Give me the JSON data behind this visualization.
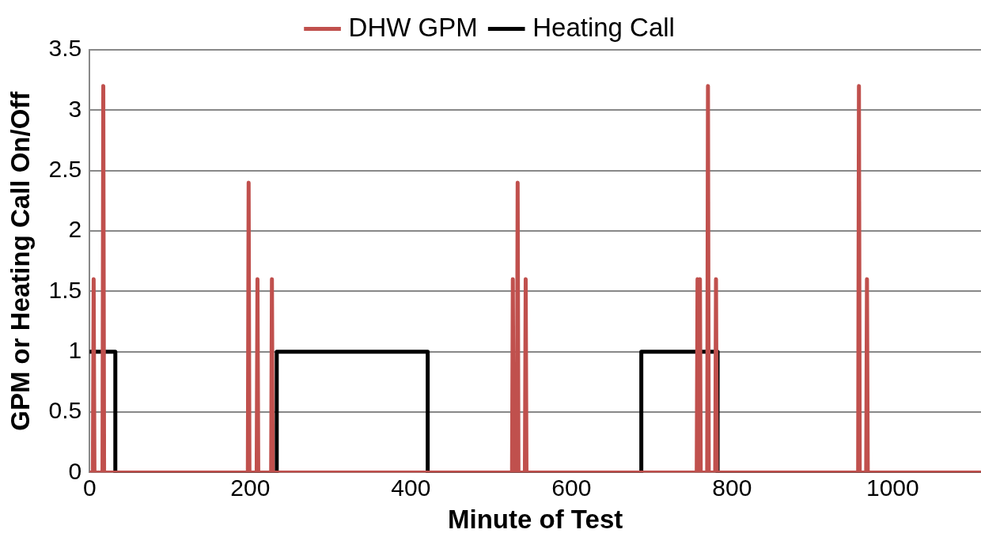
{
  "chart_data": {
    "type": "line",
    "xlabel": "Minute of Test",
    "ylabel": "GPM or Heating Call On/Off",
    "xlim": [
      0,
      1110
    ],
    "xticks": [
      0,
      200,
      400,
      600,
      800,
      1000
    ],
    "ylim": [
      0,
      3.5
    ],
    "yticks": [
      0,
      0.5,
      1,
      1.5,
      2,
      2.5,
      3,
      3.5
    ],
    "grid": "y",
    "legend": "top",
    "marker": "none",
    "line_style": "solid",
    "series": [
      {
        "name": "DHW GPM",
        "color": "#c0504d",
        "x": [
          0,
          4,
          5,
          6,
          16,
          17,
          18,
          197,
          198,
          199,
          208,
          209,
          210,
          226,
          227,
          228,
          526,
          527,
          528,
          532,
          533,
          534,
          542,
          543,
          544,
          756,
          757,
          758,
          759,
          760,
          761,
          769,
          770,
          771,
          779,
          780,
          781,
          957,
          958,
          959,
          967,
          968,
          969,
          1110
        ],
        "values": [
          0,
          0,
          1.6,
          0,
          0,
          3.2,
          0,
          0,
          2.4,
          0,
          0,
          1.6,
          0,
          0,
          1.6,
          0,
          0,
          1.6,
          0,
          0,
          2.4,
          0,
          0,
          1.6,
          0,
          0,
          1.6,
          0,
          0,
          1.6,
          0,
          0,
          3.2,
          0,
          0,
          1.6,
          0,
          0,
          3.2,
          0,
          0,
          1.6,
          0,
          0
        ]
      },
      {
        "name": "Heating Call",
        "color": "#000000",
        "x": [
          0,
          32,
          32,
          233,
          233,
          421,
          421,
          687,
          687,
          782,
          782,
          1110
        ],
        "values": [
          1,
          1,
          0,
          0,
          1,
          1,
          0,
          0,
          1,
          1,
          0,
          0
        ]
      }
    ]
  }
}
